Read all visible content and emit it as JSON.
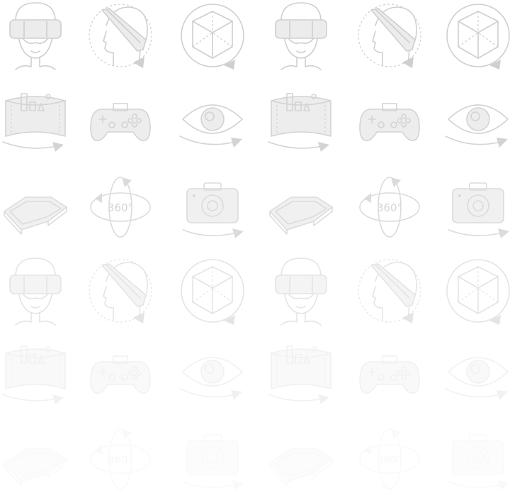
{
  "icon_sheet": {
    "stroke_color": "#cfcfcf",
    "fill_color": "#ececec",
    "background": "#ffffff",
    "rows": [
      {
        "opacity": 1.0,
        "icons": [
          "vr-headset-front-icon",
          "head-rotate-icon",
          "cube-360-icon",
          "vr-headset-front-icon",
          "head-rotate-icon",
          "cube-360-icon"
        ]
      },
      {
        "opacity": 0.9,
        "icons": [
          "panorama-city-icon",
          "gamepad-icon",
          "eye-rotate-icon",
          "panorama-city-icon",
          "gamepad-icon",
          "eye-rotate-icon"
        ]
      },
      {
        "opacity": 0.75,
        "icons": [
          "vr-goggles-icon",
          "rotate-360-icon",
          "camera-360-icon",
          "vr-goggles-icon",
          "rotate-360-icon",
          "camera-360-icon"
        ]
      },
      {
        "opacity": 0.55,
        "icons": [
          "vr-headset-front-icon",
          "head-rotate-icon",
          "cube-360-icon",
          "vr-headset-front-icon",
          "head-rotate-icon",
          "cube-360-icon"
        ]
      },
      {
        "opacity": 0.28,
        "icons": [
          "panorama-city-icon",
          "gamepad-icon",
          "eye-rotate-icon",
          "panorama-city-icon",
          "gamepad-icon",
          "eye-rotate-icon"
        ]
      },
      {
        "opacity": 0.12,
        "icons": [
          "vr-goggles-icon",
          "rotate-360-icon",
          "camera-360-icon",
          "vr-goggles-icon",
          "rotate-360-icon",
          "camera-360-icon"
        ]
      }
    ],
    "label_360": "360°"
  }
}
